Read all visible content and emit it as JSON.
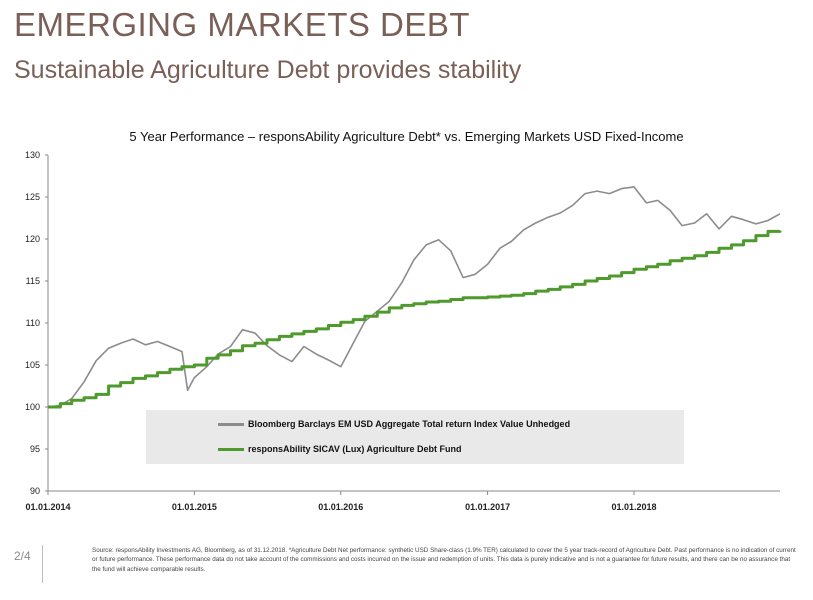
{
  "header": {
    "title": "EMERGING MARKETS DEBT",
    "subtitle": "Sustainable Agriculture Debt provides stability"
  },
  "footer": {
    "page": "2/4",
    "source": "Source: responsAbility Investments AG, Bloomberg, as of 31.12.2018. *Agriculture Debt Net performance: synthetic USD Share-class (1.9% TER) calculated to cover the 5 year track-record of Agriculture Debt. Past performance is no indication of current or future performance. These performance data do not take account of the commissions and costs incurred on the issue and redemption of units. This data is purely indicative and is not a guarantee for future results, and there can be no assurance that the fund will achieve comparable results."
  },
  "colors": {
    "index": "#8c8c8c",
    "fund": "#4e9a2c",
    "title": "#7a5f57"
  },
  "chart_data": {
    "type": "line",
    "title": "5 Year Performance – responsAbility  Agriculture Debt* vs. Emerging Markets USD Fixed-Income",
    "xlabel": "",
    "ylabel": "",
    "ylim": [
      90,
      130
    ],
    "yticks": [
      90,
      95,
      100,
      105,
      110,
      115,
      120,
      125,
      130
    ],
    "xlim": [
      "2014-01-01",
      "2018-12-31"
    ],
    "xticks": [
      "01.01.2014",
      "01.01.2015",
      "01.01.2016",
      "01.01.2017",
      "01.01.2018"
    ],
    "grid": false,
    "legend_position": "lower-right",
    "series": [
      {
        "name": "Bloomberg Barclays EM USD Aggregate Total return Index Value Unhedged",
        "color": "#8c8c8c",
        "points": [
          [
            "2014-01-01",
            100.0
          ],
          [
            "2014-02-01",
            100.2
          ],
          [
            "2014-03-01",
            101.0
          ],
          [
            "2014-04-01",
            103.0
          ],
          [
            "2014-05-01",
            105.5
          ],
          [
            "2014-06-01",
            107.0
          ],
          [
            "2014-07-01",
            107.6
          ],
          [
            "2014-08-01",
            108.1
          ],
          [
            "2014-09-01",
            107.4
          ],
          [
            "2014-10-01",
            107.8
          ],
          [
            "2014-11-01",
            107.2
          ],
          [
            "2014-12-01",
            106.6
          ],
          [
            "2014-12-15",
            102.0
          ],
          [
            "2015-01-01",
            103.5
          ],
          [
            "2015-02-01",
            104.8
          ],
          [
            "2015-03-01",
            106.3
          ],
          [
            "2015-04-01",
            107.2
          ],
          [
            "2015-05-01",
            109.2
          ],
          [
            "2015-06-01",
            108.8
          ],
          [
            "2015-07-01",
            107.3
          ],
          [
            "2015-08-01",
            106.2
          ],
          [
            "2015-09-01",
            105.4
          ],
          [
            "2015-10-01",
            107.2
          ],
          [
            "2015-11-01",
            106.3
          ],
          [
            "2015-12-01",
            105.6
          ],
          [
            "2016-01-01",
            104.8
          ],
          [
            "2016-02-01",
            107.6
          ],
          [
            "2016-03-01",
            110.2
          ],
          [
            "2016-04-01",
            111.4
          ],
          [
            "2016-05-01",
            112.6
          ],
          [
            "2016-06-01",
            114.8
          ],
          [
            "2016-07-01",
            117.5
          ],
          [
            "2016-08-01",
            119.3
          ],
          [
            "2016-09-01",
            119.9
          ],
          [
            "2016-10-01",
            118.6
          ],
          [
            "2016-11-01",
            115.4
          ],
          [
            "2016-12-01",
            115.8
          ],
          [
            "2017-01-01",
            117.0
          ],
          [
            "2017-02-01",
            118.9
          ],
          [
            "2017-03-01",
            119.7
          ],
          [
            "2017-04-01",
            121.1
          ],
          [
            "2017-05-01",
            121.9
          ],
          [
            "2017-06-01",
            122.6
          ],
          [
            "2017-07-01",
            123.1
          ],
          [
            "2017-08-01",
            124.0
          ],
          [
            "2017-09-01",
            125.4
          ],
          [
            "2017-10-01",
            125.7
          ],
          [
            "2017-11-01",
            125.4
          ],
          [
            "2017-12-01",
            126.0
          ],
          [
            "2018-01-01",
            126.2
          ],
          [
            "2018-02-01",
            124.3
          ],
          [
            "2018-03-01",
            124.6
          ],
          [
            "2018-04-01",
            123.4
          ],
          [
            "2018-05-01",
            121.6
          ],
          [
            "2018-06-01",
            121.9
          ],
          [
            "2018-07-01",
            123.0
          ],
          [
            "2018-08-01",
            121.2
          ],
          [
            "2018-09-01",
            122.7
          ],
          [
            "2018-10-01",
            122.3
          ],
          [
            "2018-11-01",
            121.8
          ],
          [
            "2018-12-01",
            122.2
          ],
          [
            "2018-12-31",
            123.0
          ]
        ]
      },
      {
        "name": "responsAbility SICAV (Lux) Agriculture Debt Fund",
        "color": "#4e9a2c",
        "points": [
          [
            "2014-01-01",
            100.0
          ],
          [
            "2014-02-01",
            100.4
          ],
          [
            "2014-03-01",
            100.8
          ],
          [
            "2014-04-01",
            101.1
          ],
          [
            "2014-05-01",
            101.5
          ],
          [
            "2014-06-01",
            102.5
          ],
          [
            "2014-07-01",
            102.9
          ],
          [
            "2014-08-01",
            103.4
          ],
          [
            "2014-09-01",
            103.7
          ],
          [
            "2014-10-01",
            104.1
          ],
          [
            "2014-11-01",
            104.5
          ],
          [
            "2014-12-01",
            104.8
          ],
          [
            "2015-01-01",
            105.0
          ],
          [
            "2015-02-01",
            105.8
          ],
          [
            "2015-03-01",
            106.2
          ],
          [
            "2015-04-01",
            106.7
          ],
          [
            "2015-05-01",
            107.3
          ],
          [
            "2015-06-01",
            107.6
          ],
          [
            "2015-07-01",
            108.0
          ],
          [
            "2015-08-01",
            108.4
          ],
          [
            "2015-09-01",
            108.7
          ],
          [
            "2015-10-01",
            109.0
          ],
          [
            "2015-11-01",
            109.3
          ],
          [
            "2015-12-01",
            109.7
          ],
          [
            "2016-01-01",
            110.1
          ],
          [
            "2016-02-01",
            110.4
          ],
          [
            "2016-03-01",
            110.8
          ],
          [
            "2016-04-01",
            111.3
          ],
          [
            "2016-05-01",
            111.8
          ],
          [
            "2016-06-01",
            112.1
          ],
          [
            "2016-07-01",
            112.3
          ],
          [
            "2016-08-01",
            112.5
          ],
          [
            "2016-09-01",
            112.6
          ],
          [
            "2016-10-01",
            112.8
          ],
          [
            "2016-11-01",
            113.0
          ],
          [
            "2016-12-01",
            113.0
          ],
          [
            "2017-01-01",
            113.1
          ],
          [
            "2017-02-01",
            113.2
          ],
          [
            "2017-03-01",
            113.3
          ],
          [
            "2017-04-01",
            113.5
          ],
          [
            "2017-05-01",
            113.8
          ],
          [
            "2017-06-01",
            114.0
          ],
          [
            "2017-07-01",
            114.3
          ],
          [
            "2017-08-01",
            114.6
          ],
          [
            "2017-09-01",
            115.0
          ],
          [
            "2017-10-01",
            115.3
          ],
          [
            "2017-11-01",
            115.6
          ],
          [
            "2017-12-01",
            116.0
          ],
          [
            "2018-01-01",
            116.4
          ],
          [
            "2018-02-01",
            116.7
          ],
          [
            "2018-03-01",
            117.0
          ],
          [
            "2018-04-01",
            117.4
          ],
          [
            "2018-05-01",
            117.7
          ],
          [
            "2018-06-01",
            118.0
          ],
          [
            "2018-07-01",
            118.4
          ],
          [
            "2018-08-01",
            118.9
          ],
          [
            "2018-09-01",
            119.3
          ],
          [
            "2018-10-01",
            119.8
          ],
          [
            "2018-11-01",
            120.4
          ],
          [
            "2018-12-01",
            120.9
          ],
          [
            "2018-12-31",
            121.0
          ]
        ]
      }
    ]
  }
}
